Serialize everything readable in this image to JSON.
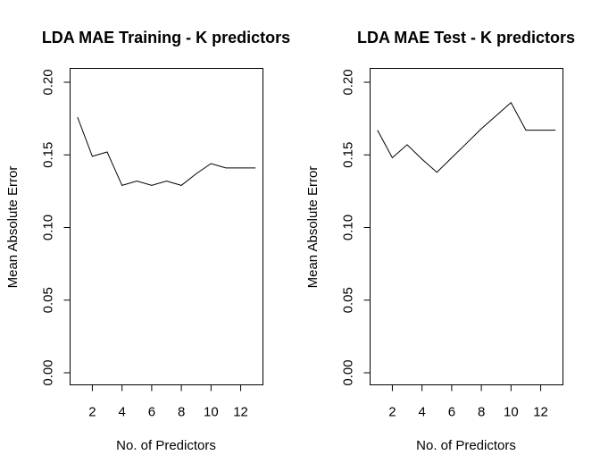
{
  "chart_data": [
    {
      "type": "line",
      "title": "LDA MAE Training - K predictors",
      "xlabel": "No. of Predictors",
      "ylabel": "Mean Absolute Error",
      "xlim": [
        0.5,
        13.5
      ],
      "ylim": [
        0.0,
        0.2
      ],
      "xticks": [
        2,
        4,
        6,
        8,
        10,
        12
      ],
      "yticks": [
        0.0,
        0.05,
        0.1,
        0.15,
        0.2
      ],
      "ytick_labels": [
        "0.00",
        "0.05",
        "0.10",
        "0.15",
        "0.20"
      ],
      "grid": false,
      "x": [
        1,
        2,
        3,
        4,
        5,
        6,
        7,
        8,
        9,
        10,
        11,
        12,
        13
      ],
      "values": [
        0.176,
        0.149,
        0.152,
        0.129,
        0.132,
        0.129,
        0.132,
        0.129,
        0.137,
        0.144,
        0.141,
        0.141,
        0.141
      ]
    },
    {
      "type": "line",
      "title": "LDA MAE Test - K predictors",
      "xlabel": "No. of Predictors",
      "ylabel": "Mean Absolute Error",
      "xlim": [
        0.5,
        13.5
      ],
      "ylim": [
        0.0,
        0.2
      ],
      "xticks": [
        2,
        4,
        6,
        8,
        10,
        12
      ],
      "yticks": [
        0.0,
        0.05,
        0.1,
        0.15,
        0.2
      ],
      "ytick_labels": [
        "0.00",
        "0.05",
        "0.10",
        "0.15",
        "0.20"
      ],
      "grid": false,
      "x": [
        1,
        2,
        3,
        4,
        5,
        6,
        7,
        8,
        9,
        10,
        11,
        12,
        13
      ],
      "values": [
        0.167,
        0.148,
        0.157,
        0.147,
        0.138,
        0.148,
        0.158,
        0.168,
        0.177,
        0.186,
        0.167,
        0.167,
        0.167
      ]
    }
  ]
}
